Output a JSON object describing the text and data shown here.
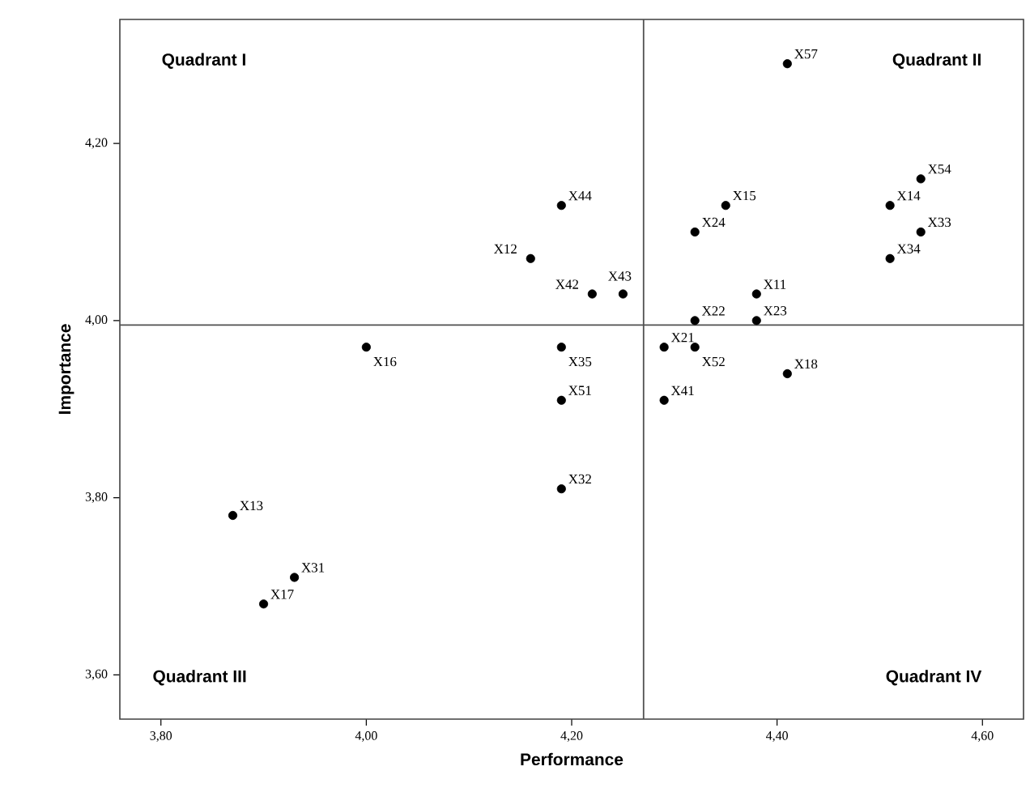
{
  "chart_data": {
    "type": "scatter",
    "xlabel": "Performance",
    "ylabel": "Importance",
    "x": [
      4.41,
      4.54,
      4.51,
      4.54,
      4.51,
      4.35,
      4.32,
      4.38,
      4.38,
      4.32,
      4.29,
      4.32,
      4.41,
      4.29,
      4.19,
      4.16,
      4.22,
      4.25,
      4.19,
      4.19,
      4.0,
      4.19,
      3.87,
      3.93,
      3.9
    ],
    "values": [
      4.29,
      4.16,
      4.13,
      4.1,
      4.07,
      4.13,
      4.1,
      4.03,
      4.0,
      4.0,
      3.97,
      3.97,
      3.94,
      3.91,
      4.13,
      4.07,
      4.03,
      4.03,
      3.97,
      3.91,
      3.97,
      3.81,
      3.78,
      3.71,
      3.68
    ],
    "color": "#000000",
    "marker": "circle",
    "xlim": [
      3.76,
      4.64
    ],
    "ylim": [
      3.55,
      4.34
    ],
    "xticks": [
      {
        "value": 3.8,
        "label": "3,80"
      },
      {
        "value": 4.0,
        "label": "4,00"
      },
      {
        "value": 4.2,
        "label": "4,20"
      },
      {
        "value": 4.4,
        "label": "4,40"
      },
      {
        "value": 4.6,
        "label": "4,60"
      }
    ],
    "yticks": [
      {
        "value": 3.6,
        "label": "3,60"
      },
      {
        "value": 3.8,
        "label": "3,80"
      },
      {
        "value": 4.0,
        "label": "4,00"
      },
      {
        "value": 4.2,
        "label": "4,20"
      }
    ],
    "ref_lines": [
      {
        "axis": "x",
        "value": 4.27,
        "color": "#505050"
      },
      {
        "axis": "y",
        "value": 3.995,
        "color": "#505050"
      }
    ],
    "annotations": [
      "Quadrant I",
      "Quadrant II",
      "Quadrant III",
      "Quadrant IV",
      {
        "text": "X57",
        "x": 4.41,
        "y": 4.29
      },
      {
        "text": "X54",
        "x": 4.54,
        "y": 4.16
      },
      {
        "text": "X14",
        "x": 4.51,
        "y": 4.13
      },
      {
        "text": "X33",
        "x": 4.54,
        "y": 4.1
      },
      {
        "text": "X34",
        "x": 4.51,
        "y": 4.07
      },
      {
        "text": "X15",
        "x": 4.35,
        "y": 4.13
      },
      {
        "text": "X24",
        "x": 4.32,
        "y": 4.1
      },
      {
        "text": "X11",
        "x": 4.38,
        "y": 4.03
      },
      {
        "text": "X23",
        "x": 4.38,
        "y": 4.0
      },
      {
        "text": "X22",
        "x": 4.32,
        "y": 4.0
      },
      {
        "text": "X21",
        "x": 4.29,
        "y": 3.97
      },
      {
        "text": "X52",
        "x": 4.32,
        "y": 3.97
      },
      {
        "text": "X18",
        "x": 4.41,
        "y": 3.94
      },
      {
        "text": "X41",
        "x": 4.29,
        "y": 3.91
      },
      {
        "text": "X44",
        "x": 4.19,
        "y": 4.13
      },
      {
        "text": "X12",
        "x": 4.16,
        "y": 4.07
      },
      {
        "text": "X42",
        "x": 4.22,
        "y": 4.03
      },
      {
        "text": "X43",
        "x": 4.25,
        "y": 4.03
      },
      {
        "text": "X35",
        "x": 4.19,
        "y": 3.97
      },
      {
        "text": "X51",
        "x": 4.19,
        "y": 3.91
      },
      {
        "text": "X16",
        "x": 4.0,
        "y": 3.97
      },
      {
        "text": "X32",
        "x": 4.19,
        "y": 3.81
      },
      {
        "text": "X13",
        "x": 3.87,
        "y": 3.78
      },
      {
        "text": "X31",
        "x": 3.93,
        "y": 3.71
      },
      {
        "text": "X17",
        "x": 3.9,
        "y": 3.68
      }
    ]
  }
}
